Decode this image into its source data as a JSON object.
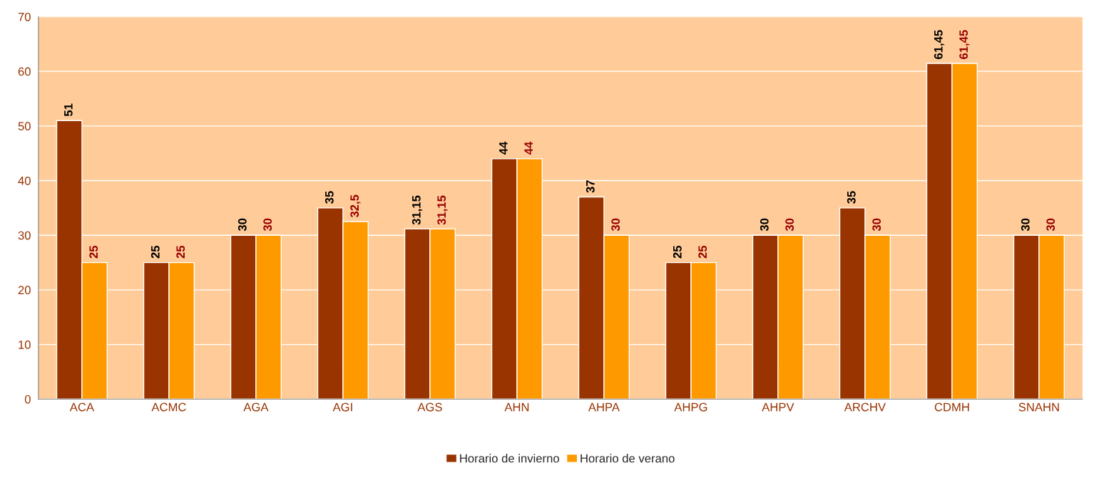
{
  "chart_data": {
    "type": "bar",
    "categories": [
      "ACA",
      "ACMC",
      "AGA",
      "AGI",
      "AGS",
      "AHN",
      "AHPA",
      "AHPG",
      "AHPV",
      "ARCHV",
      "CDMH",
      "SNAHN"
    ],
    "series": [
      {
        "name": "Horario de invierno",
        "color": "#993300",
        "values": [
          51,
          25,
          30,
          35,
          31.15,
          44,
          37,
          25,
          30,
          35,
          61.45,
          30
        ],
        "value_labels": [
          "51",
          "25",
          "30",
          "35",
          "31,15",
          "44",
          "37",
          "25",
          "30",
          "35",
          "61,45",
          "30"
        ]
      },
      {
        "name": "Horario de verano",
        "color": "#ff9900",
        "values": [
          25,
          25,
          30,
          32.5,
          31.15,
          44,
          30,
          25,
          30,
          30,
          61.45,
          30
        ],
        "value_labels": [
          "25",
          "25",
          "30",
          "32,5",
          "31,15",
          "44",
          "30",
          "25",
          "30",
          "30",
          "61,45",
          "30"
        ]
      }
    ],
    "ylim": [
      0,
      70
    ],
    "yticks": [
      0,
      10,
      20,
      30,
      40,
      50,
      60,
      70
    ],
    "grid": "y",
    "legend": "bottom"
  }
}
